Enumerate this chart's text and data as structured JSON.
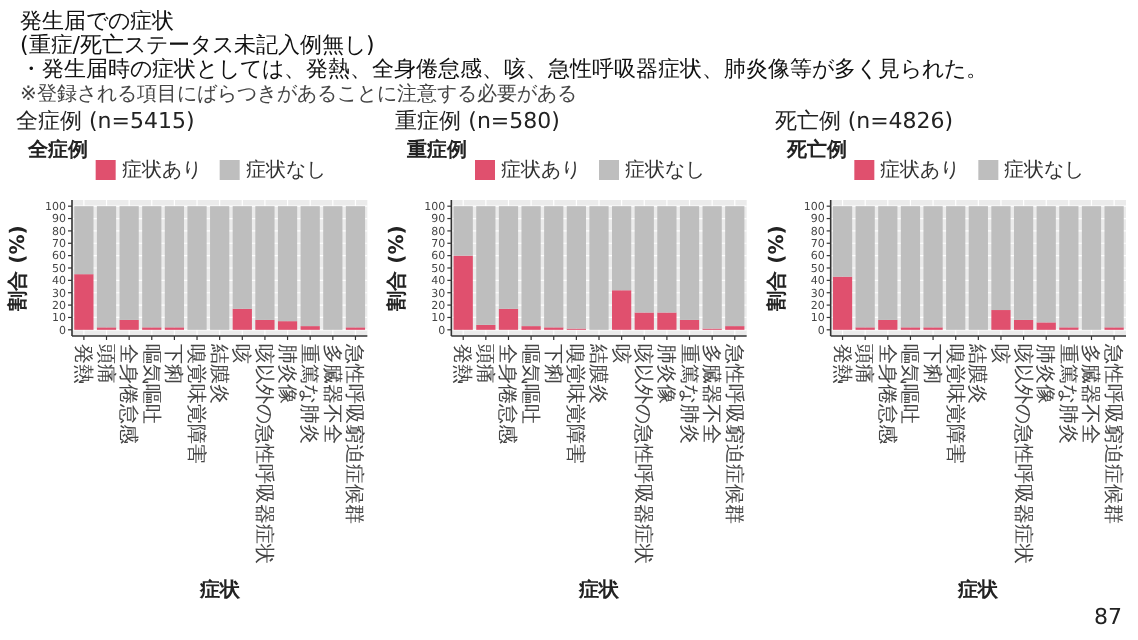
{
  "chart_data": [
    {
      "type": "bar",
      "title": "全症例",
      "subtitle": "全症例 (n=5415)",
      "xlabel": "症状",
      "ylabel": "割合 (%)",
      "annotations": [
        "発生届での症状",
        "(重症/死亡ステータス未記入例無し)",
        "・発生届時の症状としては、発熱、全身倦怠感、咳、急性呼吸器症状、肺炎像等が多く見られた。",
        "※登録される項目にばらつきがあることに注意する必要がある"
      ],
      "categories": [
        "発熱",
        "頭痛",
        "全身倦怠感",
        "嘔気嘔吐",
        "下痢",
        "嗅覚味覚障害",
        "結膜炎",
        "咳",
        "咳以外の急性呼吸器症状",
        "肺炎像",
        "重篤な肺炎",
        "多臓器不全",
        "急性呼吸窮迫症候群"
      ],
      "stacked": true,
      "legend": "top",
      "grid": true,
      "ylim": [
        -5,
        105
      ],
      "yticks": [
        0,
        10,
        20,
        30,
        40,
        50,
        60,
        70,
        80,
        90,
        100
      ],
      "series": [
        {
          "name": "症状あり",
          "color": "#e0506e",
          "values": [
            45,
            2,
            8,
            2,
            2,
            0,
            0,
            17,
            8,
            7,
            3,
            0,
            2
          ]
        },
        {
          "name": "症状なし",
          "color": "#bebebe",
          "values": [
            55,
            98,
            92,
            98,
            98,
            100,
            100,
            83,
            92,
            93,
            97,
            100,
            98
          ]
        }
      ]
    },
    {
      "type": "bar",
      "title": "重症例",
      "subtitle": "重症例 (n=580)",
      "xlabel": "症状",
      "ylabel": "割合 (%)",
      "categories": [
        "発熱",
        "頭痛",
        "全身倦怠感",
        "嘔気嘔吐",
        "下痢",
        "嗅覚味覚障害",
        "結膜炎",
        "咳",
        "咳以外の急性呼吸器症状",
        "肺炎像",
        "重篤な肺炎",
        "多臓器不全",
        "急性呼吸窮迫症候群"
      ],
      "stacked": true,
      "legend": "top",
      "grid": true,
      "ylim": [
        -5,
        105
      ],
      "yticks": [
        0,
        10,
        20,
        30,
        40,
        50,
        60,
        70,
        80,
        90,
        100
      ],
      "series": [
        {
          "name": "症状あり",
          "color": "#e0506e",
          "values": [
            60,
            4,
            17,
            3,
            2,
            1,
            0,
            32,
            14,
            14,
            8,
            1,
            3
          ]
        },
        {
          "name": "症状なし",
          "color": "#bebebe",
          "values": [
            40,
            96,
            83,
            97,
            98,
            99,
            100,
            68,
            86,
            86,
            92,
            99,
            97
          ]
        }
      ]
    },
    {
      "type": "bar",
      "title": "死亡例",
      "subtitle": "死亡例 (n=4826)",
      "xlabel": "症状",
      "ylabel": "割合 (%)",
      "annotations": [
        "87"
      ],
      "categories": [
        "発熱",
        "頭痛",
        "全身倦怠感",
        "嘔気嘔吐",
        "下痢",
        "嗅覚味覚障害",
        "結膜炎",
        "咳",
        "咳以外の急性呼吸器症状",
        "肺炎像",
        "重篤な肺炎",
        "多臓器不全",
        "急性呼吸窮迫症候群"
      ],
      "stacked": true,
      "legend": "top",
      "grid": true,
      "ylim": [
        -5,
        105
      ],
      "yticks": [
        0,
        10,
        20,
        30,
        40,
        50,
        60,
        70,
        80,
        90,
        100
      ],
      "series": [
        {
          "name": "症状あり",
          "color": "#e0506e",
          "values": [
            43,
            2,
            8,
            2,
            2,
            0,
            0,
            16,
            8,
            6,
            2,
            0,
            2
          ]
        },
        {
          "name": "症状なし",
          "color": "#bebebe",
          "values": [
            57,
            98,
            92,
            98,
            98,
            100,
            100,
            84,
            92,
            94,
            98,
            100,
            98
          ]
        }
      ]
    }
  ]
}
